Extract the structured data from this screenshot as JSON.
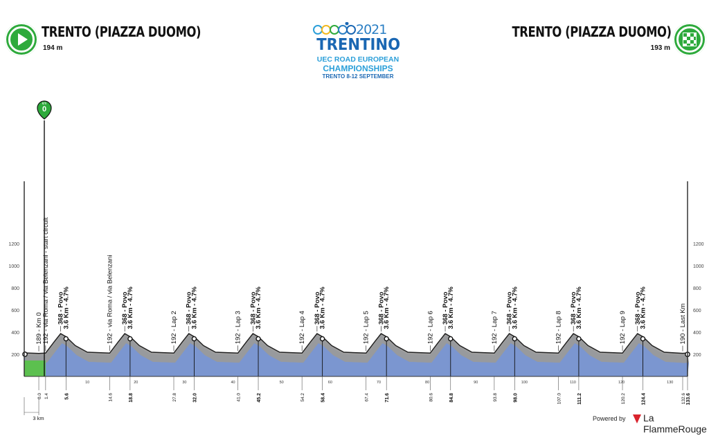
{
  "header": {
    "start_name": "TRENTO (PIAZZA DUOMO)",
    "start_altitude": "194 m",
    "finish_name": "TRENTO (PIAZZA DUOMO)",
    "finish_altitude": "193 m"
  },
  "logo": {
    "year": "2021",
    "name": "TRENTINO",
    "line1": "UEC ROAD EUROPEAN",
    "line2": "CHAMPIONSHIPS",
    "line3": "TRENTO 8-12 SEPTEMBER",
    "ring_colors": [
      "#2b9fd9",
      "#f2b81f",
      "#2eaa3c",
      "#2b7fc4",
      "#1a67b3"
    ]
  },
  "footer": {
    "powered_by": "Powered by",
    "brand": "La FlammeRouge",
    "brand_color": "#d9232d"
  },
  "chart_data": {
    "type": "area",
    "xlim": [
      -3,
      133.6
    ],
    "ylim": [
      0,
      1200
    ],
    "y_ticks": [
      200,
      400,
      600,
      800,
      1000,
      1200
    ],
    "x_minor_ticks": [
      10,
      20,
      30,
      40,
      50,
      60,
      70,
      80,
      90,
      100,
      110,
      120,
      130
    ],
    "x_major_labels": [
      "5.6",
      "18.8",
      "32.0",
      "45.2",
      "58.4",
      "71.6",
      "84.8",
      "98.0",
      "111.2",
      "124.4",
      "133.6"
    ],
    "x_minor_labels": [
      "0.0",
      "1.4",
      "14.6",
      "27.8",
      "41.0",
      "54.2",
      "67.4",
      "80.6",
      "93.8",
      "107.0",
      "120.2",
      "132.6"
    ],
    "neutral_zone_label": "3 km",
    "km_marker": {
      "label": "km",
      "value": "0"
    },
    "colors": {
      "profile_fill": "#7b96d0",
      "climb_fill": "#9a9a9a",
      "neutral_fill": "#5cc04f"
    },
    "elevation": {
      "x": [
        -3,
        0,
        1.4,
        3.1,
        4.5,
        5.6,
        7.5,
        10,
        14.6,
        16.3,
        17.7,
        18.8,
        20.7,
        23.2,
        27.8,
        29.5,
        30.9,
        32.0,
        33.9,
        36.4,
        41.0,
        42.7,
        44.1,
        45.2,
        47.1,
        49.6,
        54.2,
        55.9,
        57.3,
        58.4,
        60.3,
        62.8,
        67.4,
        69.1,
        70.5,
        71.6,
        73.5,
        76.0,
        80.6,
        82.3,
        83.7,
        84.8,
        86.7,
        89.2,
        93.8,
        95.5,
        96.9,
        98.0,
        99.9,
        102.4,
        107.0,
        108.7,
        110.1,
        111.2,
        113.1,
        115.6,
        120.2,
        121.9,
        123.3,
        124.4,
        126.3,
        128.8,
        132.6,
        133.6
      ],
      "y": [
        194,
        189,
        192,
        290,
        368,
        340,
        260,
        200,
        192,
        290,
        368,
        340,
        260,
        200,
        192,
        290,
        368,
        340,
        260,
        200,
        192,
        290,
        368,
        340,
        260,
        200,
        192,
        290,
        368,
        340,
        260,
        200,
        192,
        290,
        368,
        340,
        260,
        200,
        192,
        290,
        368,
        340,
        260,
        200,
        192,
        290,
        368,
        340,
        260,
        200,
        192,
        290,
        368,
        340,
        260,
        200,
        192,
        290,
        368,
        340,
        260,
        200,
        190,
        193
      ]
    },
    "annotations": [
      {
        "km": 0.0,
        "elevation": 189,
        "label": "189 - Km 0"
      },
      {
        "km": 1.4,
        "elevation": 192,
        "label": "192 - via Roma / via Belenzani - start circuit"
      },
      {
        "km": 4.5,
        "elevation": 368,
        "label": "368 - Povo"
      },
      {
        "km": 5.6,
        "elevation": 340,
        "label": "3.6 Km - 4.7%"
      },
      {
        "km": 14.6,
        "elevation": 192,
        "label": "192 - via Roma / via Belenzani"
      },
      {
        "km": 17.7,
        "elevation": 368,
        "label": "368 - Povo"
      },
      {
        "km": 18.8,
        "elevation": 340,
        "label": "3.6 Km - 4.7%"
      },
      {
        "km": 27.8,
        "elevation": 192,
        "label": "192 - Lap 2"
      },
      {
        "km": 30.9,
        "elevation": 368,
        "label": "368 - Povo"
      },
      {
        "km": 32.0,
        "elevation": 340,
        "label": "3.6 Km - 4.7%"
      },
      {
        "km": 41.0,
        "elevation": 192,
        "label": "192 - Lap 3"
      },
      {
        "km": 44.1,
        "elevation": 368,
        "label": "368 - Povo"
      },
      {
        "km": 45.2,
        "elevation": 340,
        "label": "3.6 Km - 4.7%"
      },
      {
        "km": 54.2,
        "elevation": 192,
        "label": "192 - Lap 4"
      },
      {
        "km": 57.3,
        "elevation": 368,
        "label": "368 - Povo"
      },
      {
        "km": 58.4,
        "elevation": 340,
        "label": "3.6 Km - 4.7%"
      },
      {
        "km": 67.4,
        "elevation": 192,
        "label": "192 - Lap 5"
      },
      {
        "km": 70.5,
        "elevation": 368,
        "label": "368 - Povo"
      },
      {
        "km": 71.6,
        "elevation": 340,
        "label": "3.6 Km - 4.7%"
      },
      {
        "km": 80.6,
        "elevation": 192,
        "label": "192 - Lap 6"
      },
      {
        "km": 83.7,
        "elevation": 368,
        "label": "368 - Povo"
      },
      {
        "km": 84.8,
        "elevation": 340,
        "label": "3.6 Km - 4.7%"
      },
      {
        "km": 93.8,
        "elevation": 192,
        "label": "192 - Lap 7"
      },
      {
        "km": 96.9,
        "elevation": 368,
        "label": "368 - Povo"
      },
      {
        "km": 98.0,
        "elevation": 340,
        "label": "3.6 Km - 4.7%"
      },
      {
        "km": 107.0,
        "elevation": 192,
        "label": "192 - Lap 8"
      },
      {
        "km": 110.1,
        "elevation": 368,
        "label": "368 - Povo"
      },
      {
        "km": 111.2,
        "elevation": 340,
        "label": "3.6 Km - 4.7%"
      },
      {
        "km": 120.2,
        "elevation": 192,
        "label": "192 - Lap 9"
      },
      {
        "km": 123.3,
        "elevation": 368,
        "label": "368 - Povo"
      },
      {
        "km": 124.4,
        "elevation": 340,
        "label": "3.6 Km - 4.7%"
      },
      {
        "km": 132.6,
        "elevation": 190,
        "label": "190 - Last Km"
      }
    ]
  }
}
